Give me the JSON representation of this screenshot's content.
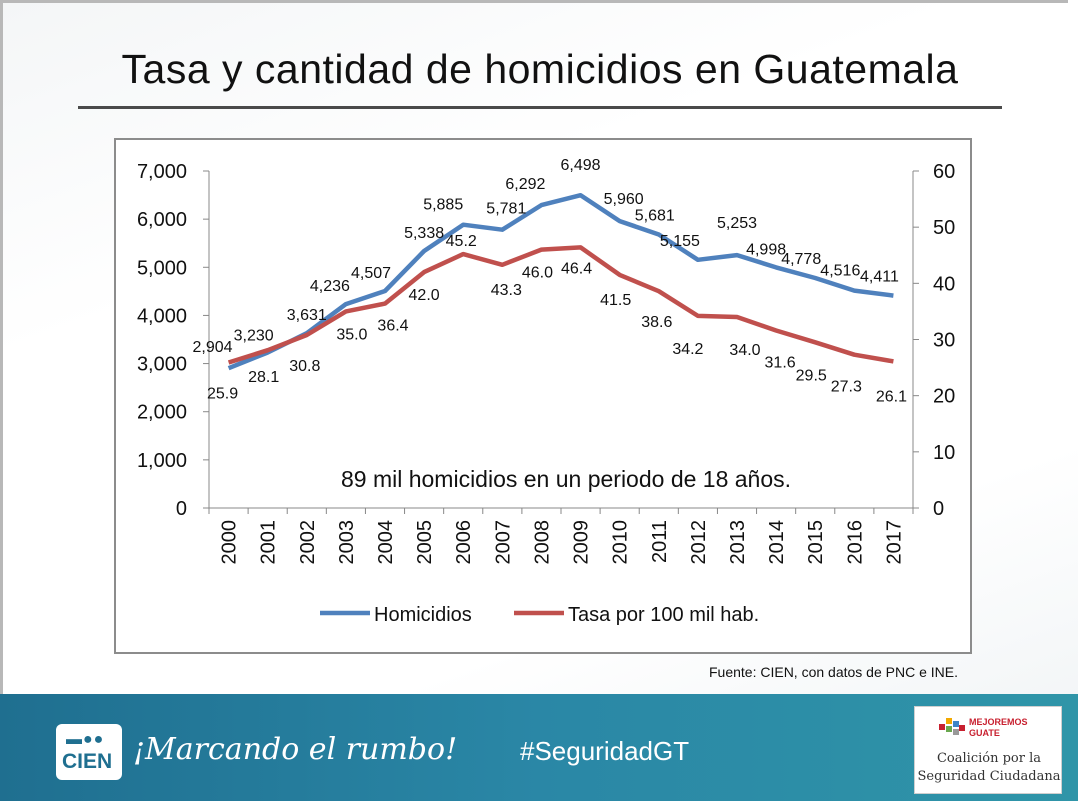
{
  "slide": {
    "title": "Tasa y cantidad de homicidios en Guatemala",
    "source": "Fuente: CIEN, con datos de PNC e INE."
  },
  "footer": {
    "logo_text": "CIEN",
    "slogan": "¡Marcando el rumbo!",
    "hashtag": "#SeguridadGT",
    "coalition_brand_line1": "MEJOREMOS",
    "coalition_brand_line2": "GUATE",
    "coalition_line1": "Coalición por la",
    "coalition_line2": "Seguridad Ciudadana",
    "colors": {
      "band": "#2a87a6",
      "logo_text": "#1f6f90",
      "brand_red": "#c8202f"
    }
  },
  "chart_data": {
    "type": "line",
    "x": [
      "2000",
      "2001",
      "2002",
      "2003",
      "2004",
      "2005",
      "2006",
      "2007",
      "2008",
      "2009",
      "2010",
      "2011",
      "2012",
      "2013",
      "2014",
      "2015",
      "2016",
      "2017"
    ],
    "series": [
      {
        "name": "Homicidios",
        "axis": "left",
        "color": "#4f81bd",
        "values": [
          2904,
          3230,
          3631,
          4236,
          4507,
          5338,
          5885,
          5781,
          6292,
          6498,
          5960,
          5681,
          5155,
          5253,
          4998,
          4778,
          4516,
          4411
        ],
        "labels": [
          "2,904",
          "3,230",
          "3,631",
          "4,236",
          "4,507",
          "5,338",
          "5,885",
          "5,781",
          "6,292",
          "6,498",
          "5,960",
          "5,681",
          "5,155",
          "5,253",
          "4,998",
          "4,778",
          "4,516",
          "4,411"
        ]
      },
      {
        "name": "Tasa por 100 mil hab.",
        "axis": "right",
        "color": "#c0504d",
        "values": [
          25.9,
          28.1,
          30.8,
          35.0,
          36.4,
          42.0,
          45.2,
          43.3,
          46.0,
          46.4,
          41.5,
          38.6,
          34.2,
          34.0,
          31.6,
          29.5,
          27.3,
          26.1
        ],
        "labels": [
          "25.9",
          "28.1",
          "30.8",
          "35.0",
          "36.4",
          "42.0",
          "45.2",
          "43.3",
          "46.0",
          "46.4",
          "41.5",
          "38.6",
          "34.2",
          "34.0",
          "31.6",
          "29.5",
          "27.3",
          "26.1"
        ]
      }
    ],
    "y_left": {
      "lim": [
        0,
        7000
      ],
      "ticks": [
        "0",
        "1,000",
        "2,000",
        "3,000",
        "4,000",
        "5,000",
        "6,000",
        "7,000"
      ]
    },
    "y_right": {
      "lim": [
        0,
        60
      ],
      "ticks": [
        "0",
        "10",
        "20",
        "30",
        "40",
        "50",
        "60"
      ]
    },
    "annotation": "89 mil homicidios en un periodo de 18 años.",
    "legend_position": "bottom",
    "grid": false
  }
}
